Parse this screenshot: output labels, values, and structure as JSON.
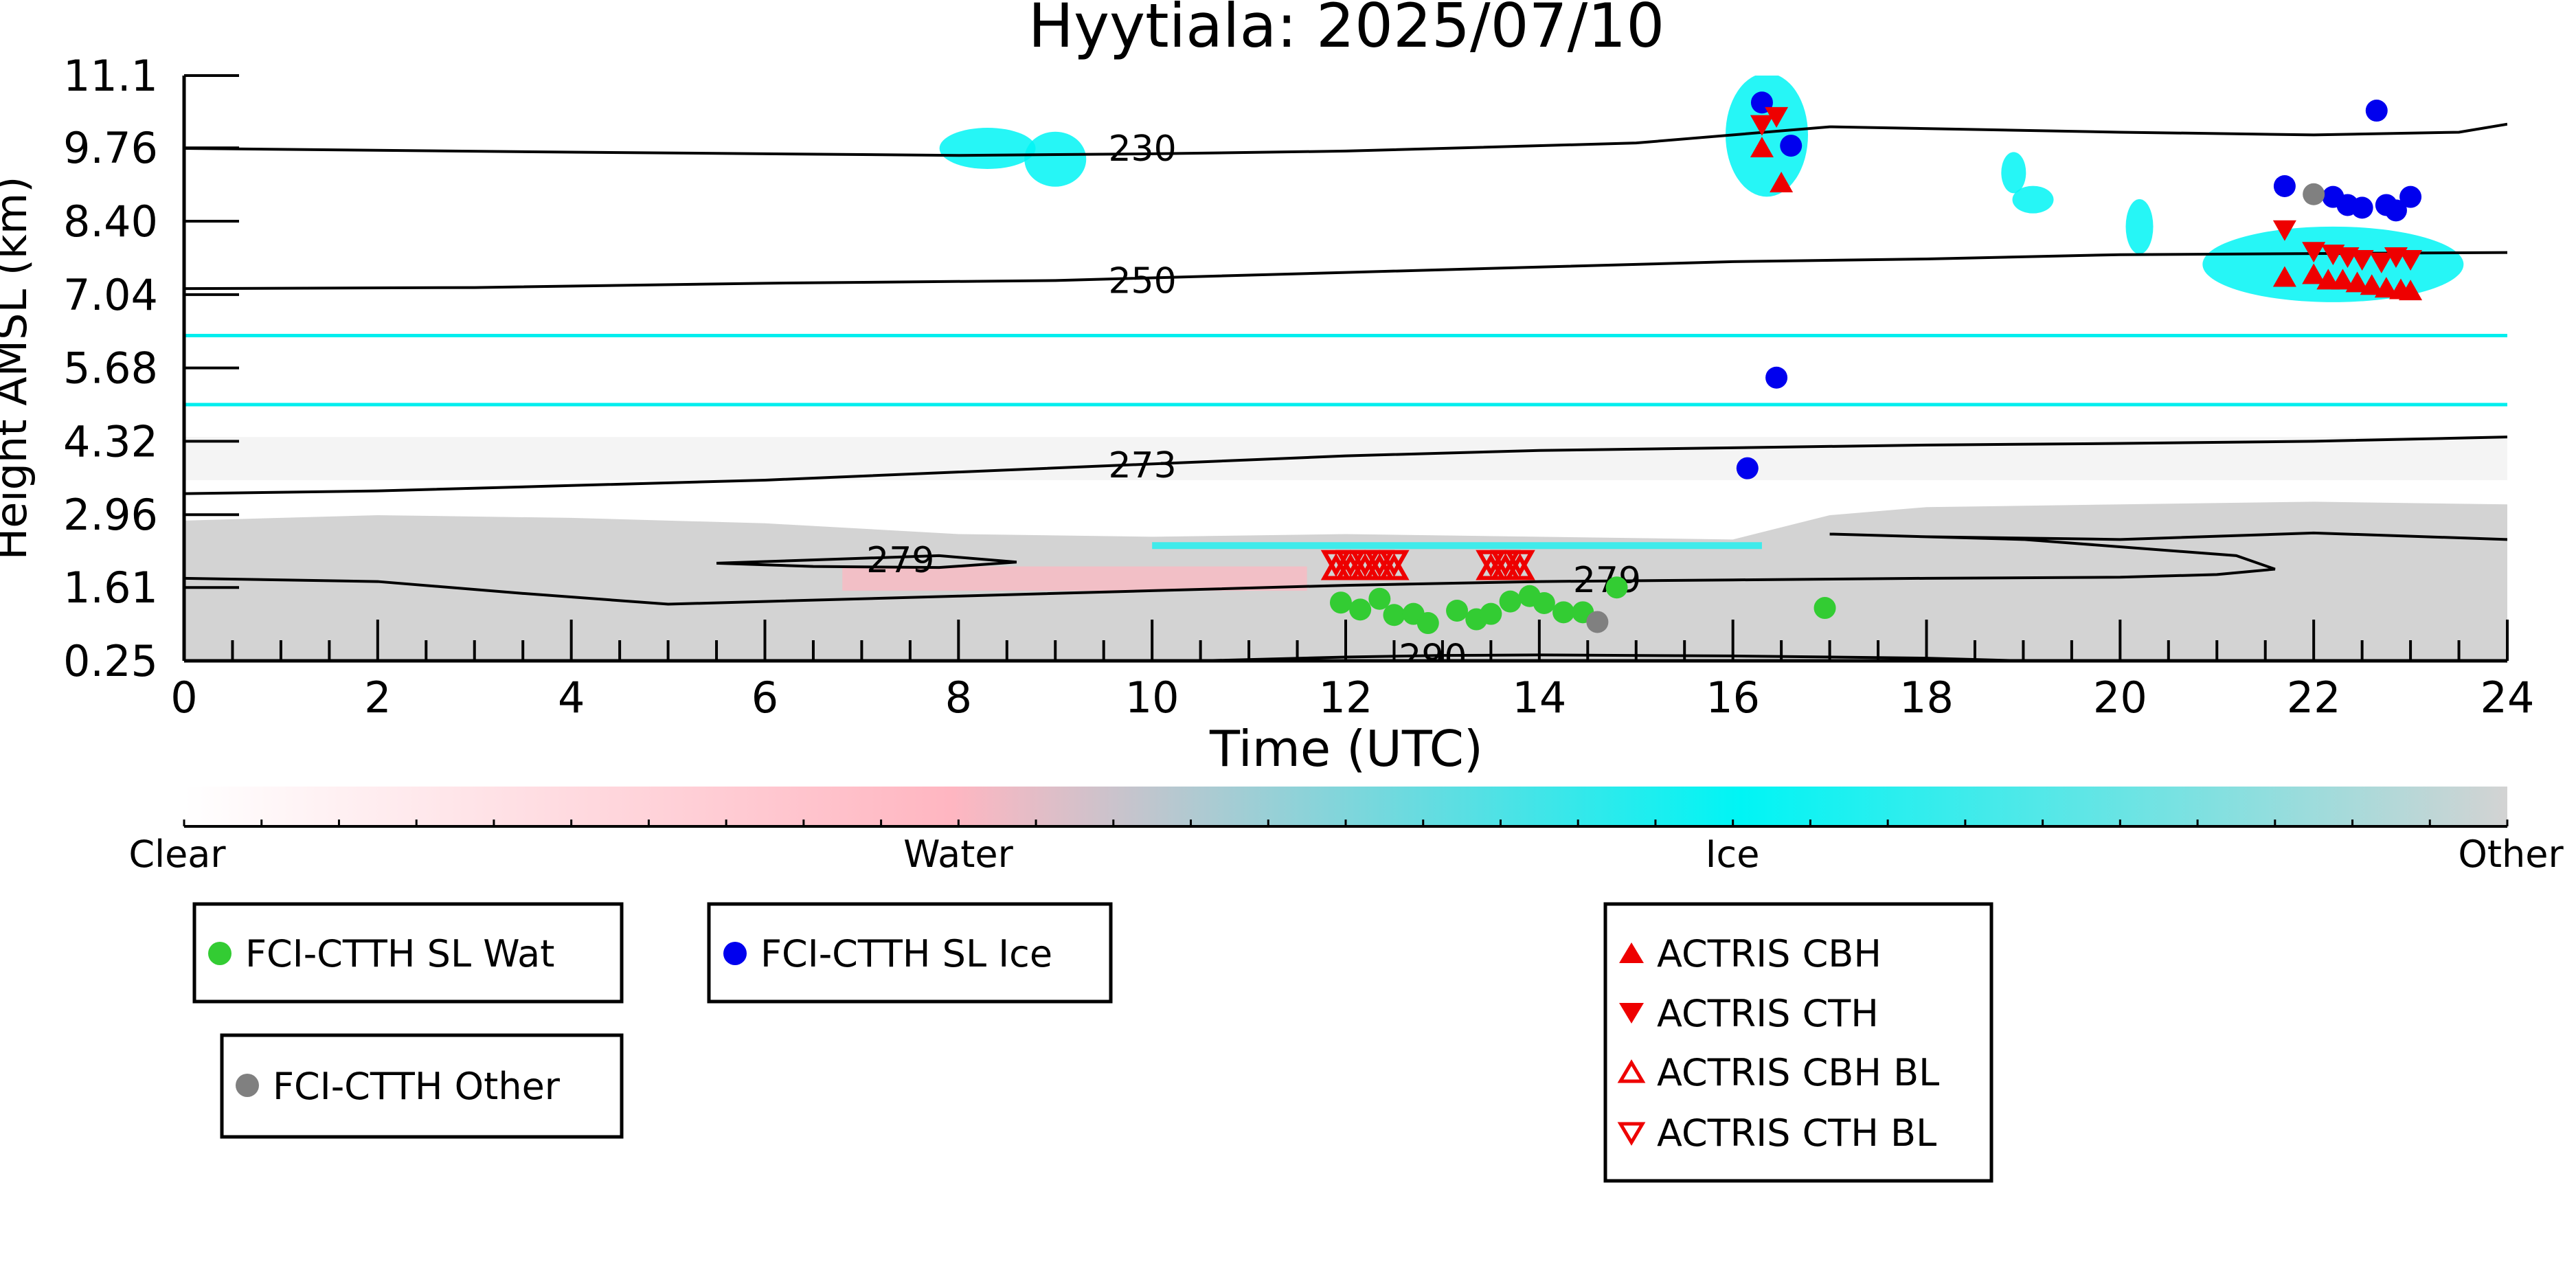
{
  "chart_data": {
    "type": "scatter",
    "title": "Hyytiala: 2025/07/10",
    "xlabel": "Time (UTC)",
    "ylabel": "Height AMSL (km)",
    "xlim": [
      0,
      24
    ],
    "ylim": [
      0.25,
      11.1
    ],
    "x_ticks": [
      "0",
      "2",
      "4",
      "6",
      "8",
      "10",
      "12",
      "14",
      "16",
      "18",
      "20",
      "22",
      "24"
    ],
    "y_ticks": [
      "0.25",
      "1.61",
      "2.96",
      "4.32",
      "5.68",
      "7.04",
      "8.40",
      "9.76",
      "11.1"
    ],
    "grid": false,
    "colorbar": {
      "labels": [
        "Clear",
        "Water",
        "Ice",
        "Other"
      ],
      "colors": [
        "#ffffff",
        "#ffb6c1",
        "#00f5f5",
        "#d3d3d3"
      ]
    },
    "contours": [
      {
        "label": "230",
        "x": [
          0,
          4,
          8,
          10,
          12,
          15,
          17,
          20,
          22,
          23.5,
          24
        ],
        "y": [
          9.75,
          9.68,
          9.62,
          9.65,
          9.7,
          9.85,
          10.15,
          10.05,
          10.0,
          10.05,
          10.2
        ]
      },
      {
        "label": "250",
        "x": [
          0,
          3,
          6,
          9,
          12,
          14,
          16,
          18,
          20,
          22,
          24
        ],
        "y": [
          7.15,
          7.17,
          7.25,
          7.3,
          7.45,
          7.55,
          7.65,
          7.7,
          7.78,
          7.8,
          7.82
        ]
      },
      {
        "label": "273",
        "x": [
          0,
          2,
          4,
          6,
          8,
          10,
          12,
          14,
          16,
          18,
          20,
          22,
          24
        ],
        "y": [
          3.35,
          3.4,
          3.5,
          3.6,
          3.75,
          3.9,
          4.05,
          4.15,
          4.2,
          4.25,
          4.28,
          4.32,
          4.4
        ]
      },
      {
        "label": "279",
        "x": [
          0,
          2,
          3.5,
          5,
          6,
          8,
          10,
          12,
          14,
          16,
          18,
          20,
          21,
          21.6,
          21.2,
          19,
          17,
          17,
          18,
          20,
          22,
          24
        ],
        "y": [
          1.78,
          1.72,
          1.5,
          1.3,
          1.35,
          1.45,
          1.55,
          1.65,
          1.72,
          1.75,
          1.78,
          1.8,
          1.85,
          1.95,
          2.2,
          2.5,
          2.6,
          2.6,
          2.55,
          2.5,
          2.62,
          2.5
        ]
      },
      {
        "label": "",
        "x": [
          5.5,
          6.5,
          7.8,
          8.6,
          7.8,
          6.5,
          5.5
        ],
        "y": [
          2.06,
          2.12,
          2.2,
          2.08,
          1.98,
          2.0,
          2.06
        ]
      },
      {
        "label": "290",
        "x": [
          10.5,
          12,
          13,
          14,
          16,
          18,
          19
        ],
        "y": [
          0.25,
          0.32,
          0.35,
          0.36,
          0.34,
          0.3,
          0.25
        ]
      }
    ],
    "series": [
      {
        "name": "FCI-CTTH SL Wat",
        "color": "#33cc33",
        "marker": "circle",
        "x": [
          11.95,
          12.15,
          12.35,
          12.5,
          12.7,
          12.85,
          13.15,
          13.35,
          13.5,
          13.7,
          13.9,
          14.05,
          14.25,
          14.45,
          14.8,
          16.95
        ],
        "y": [
          1.33,
          1.2,
          1.4,
          1.1,
          1.12,
          0.95,
          1.18,
          1.02,
          1.12,
          1.35,
          1.45,
          1.32,
          1.15,
          1.15,
          1.61,
          1.23
        ]
      },
      {
        "name": "FCI-CTTH SL Ice",
        "color": "#0000ee",
        "marker": "circle",
        "x": [
          16.3,
          16.6,
          21.7,
          22.2,
          22.35,
          22.5,
          22.65,
          22.85,
          23.0,
          22.75,
          16.45,
          16.15
        ],
        "y": [
          10.6,
          9.8,
          9.05,
          8.85,
          8.7,
          8.65,
          10.45,
          8.6,
          8.85,
          8.7,
          5.5,
          3.82
        ]
      },
      {
        "name": "FCI-CTTH Other",
        "color": "#808080",
        "marker": "circle",
        "x": [
          22.0,
          14.6
        ],
        "y": [
          8.9,
          0.97
        ]
      },
      {
        "name": "ACTRIS CBH",
        "color": "#ee0000",
        "marker": "triangle-up",
        "x": [
          16.3,
          16.5,
          21.7,
          22.0,
          22.15,
          22.3,
          22.45,
          22.6,
          22.75,
          22.9,
          23.0
        ],
        "y": [
          9.75,
          9.1,
          7.35,
          7.4,
          7.3,
          7.3,
          7.25,
          7.2,
          7.15,
          7.12,
          7.1
        ]
      },
      {
        "name": "ACTRIS CTH",
        "color": "#ee0000",
        "marker": "triangle-down",
        "x": [
          16.3,
          16.45,
          21.7,
          22.0,
          22.2,
          22.35,
          22.5,
          22.7,
          22.85,
          23.0
        ],
        "y": [
          10.2,
          10.35,
          8.25,
          7.85,
          7.8,
          7.75,
          7.7,
          7.65,
          7.75,
          7.7
        ]
      },
      {
        "name": "ACTRIS CBH BL",
        "color": "#ee0000",
        "marker": "triangle-up-open",
        "x": [
          11.9,
          12.05,
          12.2,
          12.35,
          12.5,
          13.5,
          13.65,
          13.8
        ],
        "y": [
          1.95,
          1.95,
          1.95,
          1.95,
          1.95,
          1.95,
          1.95,
          1.95
        ]
      },
      {
        "name": "ACTRIS CTH BL",
        "color": "#ee0000",
        "marker": "triangle-down-open",
        "x": [
          11.9,
          12.05,
          12.2,
          12.35,
          12.5,
          13.5,
          13.65,
          13.8
        ],
        "y": [
          2.1,
          2.1,
          2.1,
          2.1,
          2.1,
          2.1,
          2.1,
          2.1
        ]
      }
    ],
    "ice_layers": [
      {
        "x0": 0,
        "x1": 24,
        "y": 6.28
      },
      {
        "x0": 0,
        "x1": 24,
        "y": 5.0
      }
    ]
  }
}
